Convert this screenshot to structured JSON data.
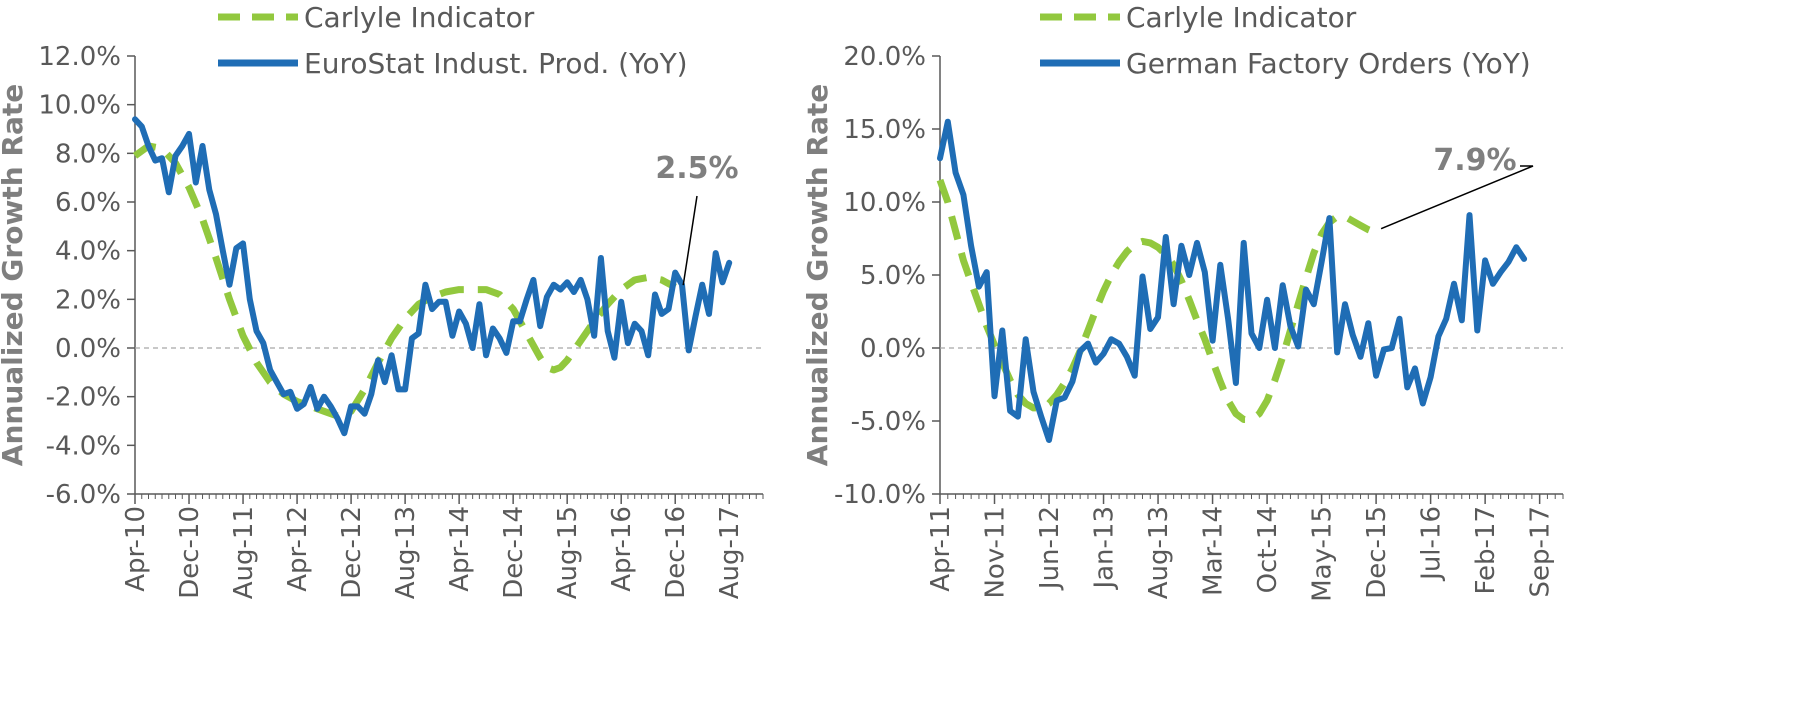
{
  "chart_data": [
    {
      "type": "line",
      "ylabel": "Annualized Growth Rate",
      "xlabel": "",
      "ylim": [
        -6,
        12
      ],
      "y_ticks": [
        "-6.0%",
        "-4.0%",
        "-2.0%",
        "0.0%",
        "2.0%",
        "4.0%",
        "6.0%",
        "8.0%",
        "10.0%",
        "12.0%"
      ],
      "y_tick_values": [
        -6,
        -4,
        -2,
        0,
        2,
        4,
        6,
        8,
        10,
        12
      ],
      "x_start": "Apr-10",
      "x_months": 93,
      "x_ticks": [
        "Apr-10",
        "Dec-10",
        "Aug-11",
        "Apr-12",
        "Dec-12",
        "Aug-13",
        "Apr-14",
        "Dec-14",
        "Aug-15",
        "Apr-16",
        "Dec-16",
        "Aug-17"
      ],
      "zero_line": true,
      "legend_position": "top",
      "colors": {
        "carlyle": "#92c83e",
        "official": "#1f6db5"
      },
      "callout": "2.5%",
      "series": [
        {
          "name": "Carlyle Indicator",
          "style": "dashed",
          "points": [
            [
              0,
              7.9
            ],
            [
              2,
              8.3
            ],
            [
              4,
              8.2
            ],
            [
              6,
              7.6
            ],
            [
              8,
              6.6
            ],
            [
              10,
              5.3
            ],
            [
              12,
              3.7
            ],
            [
              14,
              2.0
            ],
            [
              16,
              0.5
            ],
            [
              18,
              -0.6
            ],
            [
              20,
              -1.4
            ],
            [
              22,
              -1.9
            ],
            [
              24,
              -2.2
            ],
            [
              26,
              -2.4
            ],
            [
              28,
              -2.6
            ],
            [
              30,
              -2.8
            ],
            [
              32,
              -2.6
            ],
            [
              34,
              -1.7
            ],
            [
              36,
              -0.6
            ],
            [
              38,
              0.4
            ],
            [
              40,
              1.2
            ],
            [
              42,
              1.8
            ],
            [
              44,
              2.1
            ],
            [
              46,
              2.3
            ],
            [
              48,
              2.4
            ],
            [
              50,
              2.4
            ],
            [
              52,
              2.4
            ],
            [
              54,
              2.2
            ],
            [
              56,
              1.6
            ],
            [
              58,
              0.6
            ],
            [
              60,
              -0.4
            ],
            [
              61,
              -0.8
            ],
            [
              62,
              -0.9
            ],
            [
              63,
              -0.8
            ],
            [
              64,
              -0.5
            ],
            [
              66,
              0.3
            ],
            [
              68,
              1.1
            ],
            [
              70,
              1.8
            ],
            [
              72,
              2.4
            ],
            [
              74,
              2.8
            ],
            [
              76,
              2.9
            ],
            [
              78,
              2.8
            ],
            [
              80,
              2.5
            ]
          ]
        },
        {
          "name": "EuroStat Indust. Prod. (YoY)",
          "style": "solid",
          "points": [
            [
              0,
              9.4
            ],
            [
              1,
              9.1
            ],
            [
              2,
              8.3
            ],
            [
              3,
              7.7
            ],
            [
              4,
              7.8
            ],
            [
              5,
              6.4
            ],
            [
              6,
              7.9
            ],
            [
              7,
              8.3
            ],
            [
              8,
              8.8
            ],
            [
              9,
              6.8
            ],
            [
              10,
              8.3
            ],
            [
              11,
              6.5
            ],
            [
              12,
              5.5
            ],
            [
              13,
              4.0
            ],
            [
              14,
              2.6
            ],
            [
              15,
              4.1
            ],
            [
              16,
              4.3
            ],
            [
              17,
              2.0
            ],
            [
              18,
              0.7
            ],
            [
              19,
              0.2
            ],
            [
              20,
              -0.9
            ],
            [
              21,
              -1.4
            ],
            [
              22,
              -1.9
            ],
            [
              23,
              -1.8
            ],
            [
              24,
              -2.5
            ],
            [
              25,
              -2.3
            ],
            [
              26,
              -1.6
            ],
            [
              27,
              -2.5
            ],
            [
              28,
              -2.0
            ],
            [
              29,
              -2.4
            ],
            [
              30,
              -2.9
            ],
            [
              31,
              -3.5
            ],
            [
              32,
              -2.4
            ],
            [
              33,
              -2.4
            ],
            [
              34,
              -2.7
            ],
            [
              35,
              -1.9
            ],
            [
              36,
              -0.5
            ],
            [
              37,
              -1.4
            ],
            [
              38,
              -0.3
            ],
            [
              39,
              -1.7
            ],
            [
              40,
              -1.7
            ],
            [
              41,
              0.4
            ],
            [
              42,
              0.6
            ],
            [
              43,
              2.6
            ],
            [
              44,
              1.6
            ],
            [
              45,
              1.9
            ],
            [
              46,
              1.9
            ],
            [
              47,
              0.5
            ],
            [
              48,
              1.5
            ],
            [
              49,
              1.0
            ],
            [
              50,
              0.0
            ],
            [
              51,
              1.8
            ],
            [
              52,
              -0.3
            ],
            [
              53,
              0.8
            ],
            [
              54,
              0.4
            ],
            [
              55,
              -0.2
            ],
            [
              56,
              1.1
            ],
            [
              57,
              1.1
            ],
            [
              58,
              2.0
            ],
            [
              59,
              2.8
            ],
            [
              60,
              0.9
            ],
            [
              61,
              2.1
            ],
            [
              62,
              2.6
            ],
            [
              63,
              2.4
            ],
            [
              64,
              2.7
            ],
            [
              65,
              2.3
            ],
            [
              66,
              2.8
            ],
            [
              67,
              2.0
            ],
            [
              68,
              0.5
            ],
            [
              69,
              3.7
            ],
            [
              70,
              0.7
            ],
            [
              71,
              -0.4
            ],
            [
              72,
              1.9
            ],
            [
              73,
              0.2
            ],
            [
              74,
              1.0
            ],
            [
              75,
              0.7
            ],
            [
              76,
              -0.3
            ],
            [
              77,
              2.2
            ],
            [
              78,
              1.4
            ],
            [
              79,
              1.6
            ],
            [
              80,
              3.1
            ],
            [
              81,
              2.6
            ],
            [
              82,
              -0.1
            ],
            [
              83,
              1.3
            ],
            [
              84,
              2.6
            ],
            [
              85,
              1.4
            ],
            [
              86,
              3.9
            ],
            [
              87,
              2.7
            ],
            [
              88,
              3.5
            ]
          ]
        }
      ]
    },
    {
      "type": "line",
      "ylabel": "Annualized Growth Rate",
      "xlabel": "",
      "ylim": [
        -10,
        20
      ],
      "y_ticks": [
        "-10.0%",
        "-5.0%",
        "0.0%",
        "5.0%",
        "10.0%",
        "15.0%",
        "20.0%"
      ],
      "y_tick_values": [
        -10,
        -5,
        0,
        5,
        10,
        15,
        20
      ],
      "x_start": "Apr-11",
      "x_months": 80,
      "x_ticks": [
        "Apr-11",
        "Nov-11",
        "Jun-12",
        "Jan-13",
        "Aug-13",
        "Mar-14",
        "Oct-14",
        "May-15",
        "Dec-15",
        "Jul-16",
        "Feb-17",
        "Sep-17"
      ],
      "zero_line": true,
      "legend_position": "top",
      "colors": {
        "carlyle": "#92c83e",
        "official": "#1f6db5"
      },
      "callout": "7.9%",
      "series": [
        {
          "name": "Carlyle Indicator",
          "style": "dashed",
          "points": [
            [
              0,
              11.5
            ],
            [
              1,
              10.0
            ],
            [
              2,
              8.0
            ],
            [
              3,
              6.0
            ],
            [
              4,
              4.5
            ],
            [
              5,
              3.0
            ],
            [
              6,
              1.5
            ],
            [
              7,
              0.2
            ],
            [
              8,
              -1.0
            ],
            [
              9,
              -2.2
            ],
            [
              10,
              -3.2
            ],
            [
              11,
              -3.8
            ],
            [
              12,
              -4.1
            ],
            [
              13,
              -4.1
            ],
            [
              14,
              -3.8
            ],
            [
              15,
              -3.2
            ],
            [
              16,
              -2.4
            ],
            [
              17,
              -1.4
            ],
            [
              18,
              -0.2
            ],
            [
              19,
              1.2
            ],
            [
              20,
              2.6
            ],
            [
              21,
              3.9
            ],
            [
              22,
              5.0
            ],
            [
              23,
              5.9
            ],
            [
              24,
              6.6
            ],
            [
              25,
              7.1
            ],
            [
              26,
              7.3
            ],
            [
              27,
              7.2
            ],
            [
              28,
              6.9
            ],
            [
              29,
              6.4
            ],
            [
              30,
              5.7
            ],
            [
              31,
              4.6
            ],
            [
              32,
              3.3
            ],
            [
              33,
              1.9
            ],
            [
              34,
              0.6
            ],
            [
              35,
              -0.9
            ],
            [
              36,
              -2.3
            ],
            [
              37,
              -3.6
            ],
            [
              38,
              -4.5
            ],
            [
              39,
              -4.9
            ],
            [
              40,
              -4.9
            ],
            [
              41,
              -4.5
            ],
            [
              42,
              -3.6
            ],
            [
              43,
              -2.2
            ],
            [
              44,
              -0.6
            ],
            [
              45,
              1.2
            ],
            [
              46,
              3.0
            ],
            [
              47,
              4.8
            ],
            [
              48,
              6.5
            ],
            [
              49,
              7.8
            ],
            [
              50,
              8.6
            ],
            [
              51,
              9.0
            ],
            [
              52,
              9.0
            ],
            [
              53,
              8.7
            ],
            [
              54,
              8.4
            ],
            [
              55,
              8.1
            ],
            [
              56,
              7.9
            ]
          ]
        },
        {
          "name": "German Factory Orders (YoY)",
          "style": "solid",
          "points": [
            [
              0,
              13.0
            ],
            [
              1,
              15.5
            ],
            [
              2,
              12.0
            ],
            [
              3,
              10.5
            ],
            [
              4,
              7.0
            ],
            [
              5,
              4.2
            ],
            [
              6,
              5.2
            ],
            [
              7,
              -3.3
            ],
            [
              8,
              1.2
            ],
            [
              9,
              -4.3
            ],
            [
              10,
              -4.7
            ],
            [
              11,
              0.6
            ],
            [
              12,
              -3.0
            ],
            [
              13,
              -4.7
            ],
            [
              14,
              -6.3
            ],
            [
              15,
              -3.6
            ],
            [
              16,
              -3.4
            ],
            [
              17,
              -2.3
            ],
            [
              18,
              -0.2
            ],
            [
              19,
              0.3
            ],
            [
              20,
              -1.0
            ],
            [
              21,
              -0.4
            ],
            [
              22,
              0.6
            ],
            [
              23,
              0.3
            ],
            [
              24,
              -0.6
            ],
            [
              25,
              -1.9
            ],
            [
              26,
              4.9
            ],
            [
              27,
              1.3
            ],
            [
              28,
              2.1
            ],
            [
              29,
              7.6
            ],
            [
              30,
              3.0
            ],
            [
              31,
              7.0
            ],
            [
              32,
              5.0
            ],
            [
              33,
              7.2
            ],
            [
              34,
              5.2
            ],
            [
              35,
              0.5
            ],
            [
              36,
              5.7
            ],
            [
              37,
              2.0
            ],
            [
              38,
              -2.4
            ],
            [
              39,
              7.2
            ],
            [
              40,
              1.0
            ],
            [
              41,
              0.0
            ],
            [
              42,
              3.3
            ],
            [
              43,
              0.0
            ],
            [
              44,
              4.3
            ],
            [
              45,
              1.5
            ],
            [
              46,
              0.1
            ],
            [
              47,
              4.0
            ],
            [
              48,
              3.0
            ],
            [
              49,
              5.9
            ],
            [
              50,
              8.9
            ],
            [
              51,
              -0.3
            ],
            [
              52,
              3.0
            ],
            [
              53,
              0.9
            ],
            [
              54,
              -0.6
            ],
            [
              55,
              1.7
            ],
            [
              56,
              -1.9
            ],
            [
              57,
              -0.1
            ],
            [
              58,
              0.0
            ],
            [
              59,
              2.0
            ],
            [
              60,
              -2.7
            ],
            [
              61,
              -1.4
            ],
            [
              62,
              -3.8
            ],
            [
              63,
              -2.0
            ],
            [
              64,
              0.8
            ],
            [
              65,
              2.0
            ],
            [
              66,
              4.4
            ],
            [
              67,
              1.9
            ],
            [
              68,
              9.1
            ],
            [
              69,
              1.2
            ],
            [
              70,
              6.0
            ],
            [
              71,
              4.4
            ],
            [
              72,
              5.2
            ],
            [
              73,
              5.9
            ],
            [
              74,
              6.9
            ],
            [
              75,
              6.1
            ]
          ]
        }
      ]
    }
  ]
}
